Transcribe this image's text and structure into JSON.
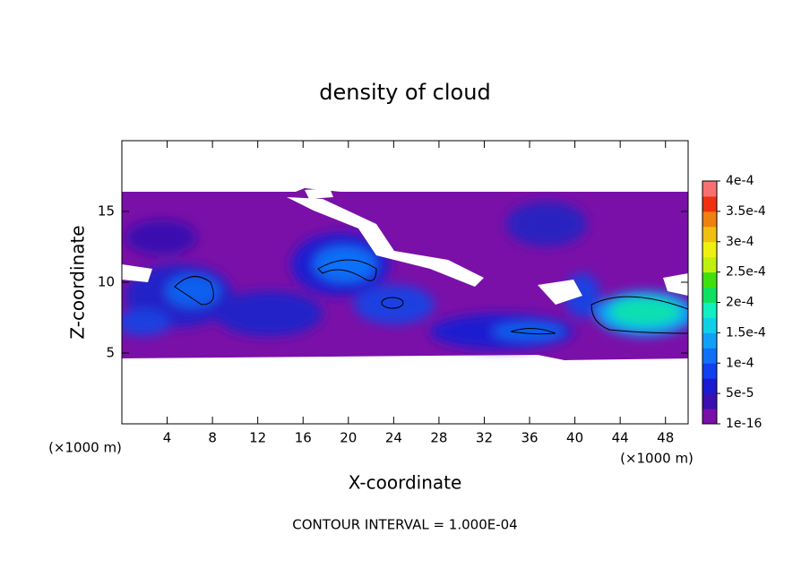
{
  "chart_data": {
    "type": "contour",
    "title": "density of cloud",
    "xlabel": "X-coordinate",
    "ylabel": "Z-coordinate",
    "xunit": "(×1000 m)",
    "yunit": "(×1000 m)",
    "footer": "CONTOUR INTERVAL = 1.000E-04",
    "xlim": [
      0,
      50
    ],
    "xticks": [
      4,
      8,
      12,
      16,
      20,
      24,
      28,
      32,
      36,
      40,
      44,
      48
    ],
    "ylim": [
      0,
      20
    ],
    "yticks": [
      5,
      10,
      15
    ],
    "clim": [
      1e-16,
      0.0004
    ],
    "cticks": [
      {
        "value": 1e-16,
        "label": "1e-16"
      },
      {
        "value": 5e-05,
        "label": "5e-5"
      },
      {
        "value": 0.0001,
        "label": "1e-4"
      },
      {
        "value": 0.00015,
        "label": "1.5e-4"
      },
      {
        "value": 0.0002,
        "label": "2e-4"
      },
      {
        "value": 0.00025,
        "label": "2.5e-4"
      },
      {
        "value": 0.0003,
        "label": "3e-4"
      },
      {
        "value": 0.00035,
        "label": "3.5e-4"
      },
      {
        "value": 0.0004,
        "label": "4e-4"
      }
    ],
    "colors": [
      "#7a10a8",
      "#3a10b0",
      "#1a1ad0",
      "#1040f0",
      "#1070f8",
      "#10a0f8",
      "#10d0e8",
      "#10f0c0",
      "#10e060",
      "#40e010",
      "#c0f010",
      "#f0f010",
      "#f0c010",
      "#f08010",
      "#f03010",
      "#f87070"
    ]
  }
}
